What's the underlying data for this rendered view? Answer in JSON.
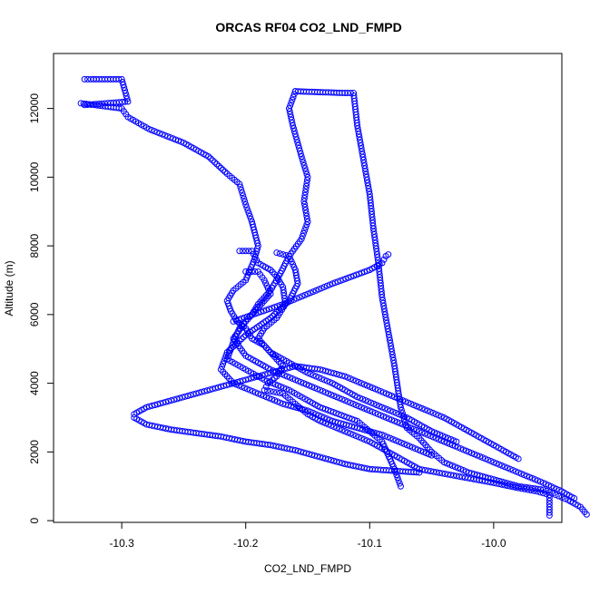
{
  "chart_data": {
    "type": "scatter",
    "title": "ORCAS RF04 CO2_LND_FMPD",
    "xlabel": "CO2_LND_FMPD",
    "ylabel": "Altitude (m)",
    "xlim": [
      -10.355,
      -9.945
    ],
    "ylim": [
      -50,
      13600
    ],
    "x_ticks": [
      -10.3,
      -10.2,
      -10.1,
      -10.0
    ],
    "x_tick_labels": [
      "-10.3",
      "-10.2",
      "-10.1",
      "-10.0"
    ],
    "y_ticks": [
      0,
      2000,
      4000,
      6000,
      8000,
      10000,
      12000
    ],
    "y_tick_labels": [
      "0",
      "2000",
      "4000",
      "6000",
      "8000",
      "10000",
      "12000"
    ],
    "marker": "open-circle",
    "grid": false,
    "series": [
      {
        "color": "#0000ff",
        "x": [
          -10.33,
          -10.325,
          -10.3,
          -10.295,
          -10.33,
          -10.333,
          -10.3,
          -10.295,
          -10.278,
          -10.25,
          -10.23,
          -10.215,
          -10.205,
          -10.2,
          -10.195,
          -10.19,
          -10.193,
          -10.2,
          -10.21,
          -10.215,
          -10.212,
          -10.207,
          -10.2,
          -10.195,
          -10.185,
          -10.18,
          -10.175,
          -10.17,
          -10.175,
          -10.182,
          -10.185,
          -10.17,
          -10.16,
          -10.15,
          -10.14,
          -10.12,
          -10.1,
          -10.08,
          -10.06,
          -10.03,
          -10.0,
          -9.98,
          -9.965,
          -9.955,
          -9.955,
          -9.955
        ],
        "y": [
          12850,
          12850,
          12850,
          12200,
          12100,
          12150,
          12000,
          11750,
          11400,
          11000,
          10600,
          10100,
          9800,
          9200,
          8700,
          8000,
          7600,
          7000,
          6700,
          6400,
          6100,
          5800,
          5600,
          5300,
          5100,
          4900,
          4700,
          4500,
          4200,
          4000,
          3800,
          3700,
          3400,
          3100,
          2900,
          2600,
          2300,
          1900,
          1500,
          1300,
          1100,
          950,
          850,
          750,
          400,
          150
        ]
      },
      {
        "color": "#0000ff",
        "x": [
          -10.16,
          -10.12,
          -10.113,
          -10.11,
          -10.105,
          -10.1,
          -10.097,
          -10.093,
          -10.09,
          -10.085,
          -10.08,
          -10.075,
          -10.07,
          -10.06,
          -10.05,
          -10.04,
          -10.02,
          -10.0,
          -9.98,
          -9.96,
          -9.95,
          -9.94,
          -9.93,
          -9.925
        ],
        "y": [
          12500,
          12450,
          12450,
          11500,
          10500,
          9500,
          8500,
          7500,
          6500,
          5500,
          4500,
          3300,
          2700,
          2400,
          2000,
          1700,
          1400,
          1200,
          1000,
          900,
          750,
          600,
          400,
          180
        ]
      },
      {
        "color": "#0000ff",
        "x": [
          -10.16,
          -10.165,
          -10.162,
          -10.155,
          -10.15,
          -10.153,
          -10.15,
          -10.155,
          -10.165,
          -10.172,
          -10.18,
          -10.19,
          -10.195,
          -10.205,
          -10.21,
          -10.215,
          -10.2,
          -10.185,
          -10.165,
          -10.15,
          -10.14,
          -10.125,
          -10.11,
          -10.1,
          -10.09,
          -10.08,
          -10.075
        ],
        "y": [
          12500,
          12000,
          11500,
          10600,
          10000,
          9300,
          8700,
          8200,
          7700,
          7200,
          6700,
          6300,
          6000,
          5600,
          5200,
          4700,
          4400,
          4100,
          3800,
          3500,
          3300,
          3100,
          2900,
          2600,
          2300,
          1500,
          1000
        ]
      },
      {
        "color": "#0000ff",
        "x": [
          -10.205,
          -10.195,
          -10.19,
          -10.18,
          -10.175,
          -10.17,
          -10.168,
          -10.175,
          -10.185,
          -10.19,
          -10.18,
          -10.165,
          -10.15,
          -10.13,
          -10.11,
          -10.09,
          -10.07,
          -10.05,
          -10.03
        ],
        "y": [
          7850,
          7850,
          7500,
          7300,
          7100,
          6800,
          6300,
          5900,
          5600,
          5300,
          4900,
          4600,
          4300,
          4000,
          3600,
          3300,
          3000,
          2600,
          2300
        ]
      },
      {
        "color": "#0000ff",
        "x": [
          -10.2,
          -10.19,
          -10.185,
          -10.18,
          -10.19,
          -10.2,
          -10.21,
          -10.2,
          -10.18,
          -10.16,
          -10.14,
          -10.12,
          -10.1,
          -10.08,
          -10.06,
          -10.04,
          -10.02,
          -10.0,
          -9.98,
          -9.96,
          -9.945,
          -9.935
        ],
        "y": [
          7250,
          7250,
          7000,
          6600,
          6200,
          5800,
          5300,
          4800,
          4400,
          4100,
          3800,
          3500,
          3200,
          2900,
          2600,
          2300,
          2000,
          1700,
          1400,
          1100,
          850,
          650
        ]
      },
      {
        "color": "#0000ff",
        "x": [
          -10.21,
          -10.19,
          -10.17,
          -10.15,
          -10.13,
          -10.115,
          -10.1,
          -10.09,
          -10.087,
          -10.085
        ],
        "y": [
          5800,
          6050,
          6300,
          6600,
          6900,
          7100,
          7300,
          7500,
          7700,
          7750
        ]
      },
      {
        "color": "#0000ff",
        "x": [
          -10.175,
          -10.165,
          -10.16,
          -10.158,
          -10.165,
          -10.18,
          -10.2,
          -10.215,
          -10.22,
          -10.21,
          -10.19,
          -10.17,
          -10.15,
          -10.13,
          -10.11,
          -10.09,
          -10.07,
          -10.05
        ],
        "y": [
          7800,
          7700,
          7300,
          6900,
          6400,
          5900,
          5400,
          4900,
          4400,
          4000,
          3700,
          3400,
          3200,
          2900,
          2700,
          2500,
          2200,
          1900
        ]
      },
      {
        "color": "#0000ff",
        "x": [
          -10.29,
          -10.28,
          -10.26,
          -10.24,
          -10.22,
          -10.2,
          -10.18,
          -10.16,
          -10.14,
          -10.12,
          -10.1,
          -10.08,
          -10.06,
          -10.04,
          -10.02,
          -10.0,
          -9.98
        ],
        "y": [
          3100,
          3300,
          3500,
          3700,
          3900,
          4100,
          4300,
          4500,
          4400,
          4200,
          3900,
          3600,
          3300,
          3000,
          2600,
          2200,
          1800
        ]
      },
      {
        "color": "#0000ff",
        "x": [
          -10.29,
          -10.28,
          -10.26,
          -10.24,
          -10.22,
          -10.2,
          -10.18,
          -10.16,
          -10.14,
          -10.12,
          -10.1,
          -10.08,
          -10.06
        ],
        "y": [
          3000,
          2800,
          2650,
          2550,
          2450,
          2300,
          2200,
          2050,
          1850,
          1650,
          1500,
          1450,
          1400
        ]
      }
    ]
  }
}
